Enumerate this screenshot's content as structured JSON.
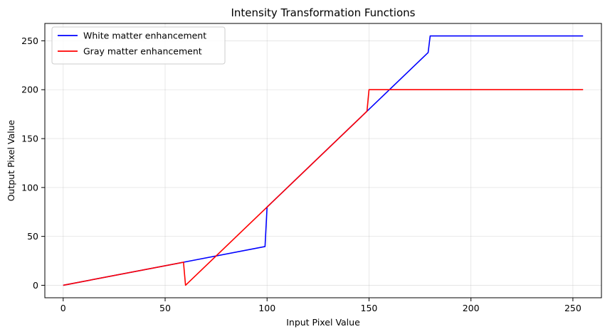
{
  "chart_data": {
    "type": "line",
    "title": "Intensity Transformation Functions",
    "xlabel": "Input Pixel Value",
    "ylabel": "Output Pixel Value",
    "xlim": [
      -9,
      264
    ],
    "ylim": [
      -12.75,
      267.75
    ],
    "xticks": [
      0,
      50,
      100,
      150,
      200,
      250
    ],
    "yticks": [
      0,
      50,
      100,
      150,
      200,
      250
    ],
    "grid": true,
    "legend_position": "top-left",
    "series": [
      {
        "name": "White matter enhancement",
        "color": "#0000ff",
        "points": [
          [
            0,
            0
          ],
          [
            59,
            23.6
          ],
          [
            99,
            39.6
          ],
          [
            100,
            80
          ],
          [
            179,
            238
          ],
          [
            180,
            255
          ],
          [
            255,
            255
          ]
        ]
      },
      {
        "name": "Gray matter enhancement",
        "color": "#ff0000",
        "points": [
          [
            0,
            0
          ],
          [
            59,
            23.6
          ],
          [
            60,
            0
          ],
          [
            149,
            178
          ],
          [
            150,
            200
          ],
          [
            255,
            200
          ]
        ]
      }
    ]
  }
}
